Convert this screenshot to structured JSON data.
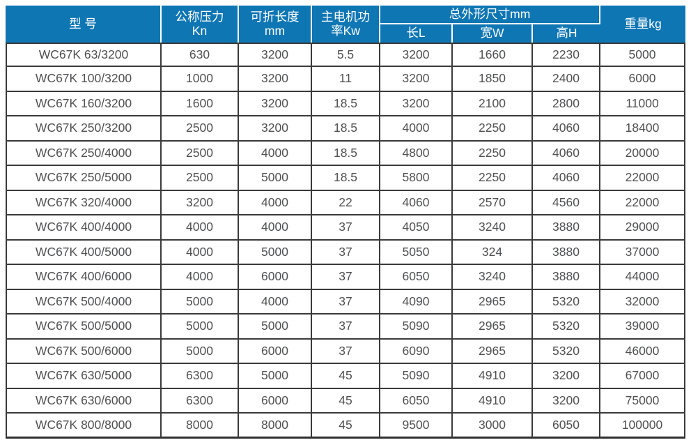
{
  "table": {
    "headers": {
      "model": "型 号",
      "pressure_line1": "公称压力",
      "pressure_line2": "Kn",
      "fold_length_line1": "可折长度",
      "fold_length_line2": "mm",
      "motor_power_line1": "主电机功",
      "motor_power_line2": "率Kw",
      "dimensions_group": "总外形尺寸mm",
      "dim_length": "长L",
      "dim_width": "宽W",
      "dim_height": "高H",
      "weight": "重量kg"
    },
    "rows": [
      {
        "model": "WC67K 63/3200",
        "pressure": "630",
        "fold_length": "3200",
        "motor_power": "5.5",
        "length": "3200",
        "width": "1660",
        "height": "2230",
        "weight": "5000"
      },
      {
        "model": "WC67K 100/3200",
        "pressure": "1000",
        "fold_length": "3200",
        "motor_power": "11",
        "length": "3200",
        "width": "1850",
        "height": "2400",
        "weight": "6000"
      },
      {
        "model": "WC67K 160/3200",
        "pressure": "1600",
        "fold_length": "3200",
        "motor_power": "18.5",
        "length": "3200",
        "width": "2100",
        "height": "2800",
        "weight": "11000"
      },
      {
        "model": "WC67K 250/3200",
        "pressure": "2500",
        "fold_length": "3200",
        "motor_power": "18.5",
        "length": "4000",
        "width": "2250",
        "height": "4060",
        "weight": "18400"
      },
      {
        "model": "WC67K 250/4000",
        "pressure": "2500",
        "fold_length": "4000",
        "motor_power": "18.5",
        "length": "4800",
        "width": "2250",
        "height": "4060",
        "weight": "20000"
      },
      {
        "model": "WC67K 250/5000",
        "pressure": "2500",
        "fold_length": "5000",
        "motor_power": "18.5",
        "length": "5800",
        "width": "2250",
        "height": "4060",
        "weight": "22000"
      },
      {
        "model": "WC67K 320/4000",
        "pressure": "3200",
        "fold_length": "4000",
        "motor_power": "22",
        "length": "4060",
        "width": "2570",
        "height": "4560",
        "weight": "22000"
      },
      {
        "model": "WC67K 400/4000",
        "pressure": "4000",
        "fold_length": "4000",
        "motor_power": "37",
        "length": "4050",
        "width": "3240",
        "height": "3880",
        "weight": "29000"
      },
      {
        "model": "WC67K 400/5000",
        "pressure": "4000",
        "fold_length": "5000",
        "motor_power": "37",
        "length": "5050",
        "width": "324",
        "height": "3880",
        "weight": "37000"
      },
      {
        "model": "WC67K 400/6000",
        "pressure": "4000",
        "fold_length": "6000",
        "motor_power": "37",
        "length": "6050",
        "width": "3240",
        "height": "3880",
        "weight": "44000"
      },
      {
        "model": "WC67K 500/4000",
        "pressure": "5000",
        "fold_length": "4000",
        "motor_power": "37",
        "length": "4090",
        "width": "2965",
        "height": "5320",
        "weight": "32000"
      },
      {
        "model": "WC67K 500/5000",
        "pressure": "5000",
        "fold_length": "5000",
        "motor_power": "37",
        "length": "5090",
        "width": "2965",
        "height": "5320",
        "weight": "39000"
      },
      {
        "model": "WC67K 500/6000",
        "pressure": "5000",
        "fold_length": "6000",
        "motor_power": "37",
        "length": "6090",
        "width": "2965",
        "height": "5320",
        "weight": "46000"
      },
      {
        "model": "WC67K 630/5000",
        "pressure": "6300",
        "fold_length": "5000",
        "motor_power": "45",
        "length": "5090",
        "width": "4910",
        "height": "3200",
        "weight": "67000"
      },
      {
        "model": "WC67K 630/6000",
        "pressure": "6300",
        "fold_length": "6000",
        "motor_power": "45",
        "length": "6050",
        "width": "4910",
        "height": "3200",
        "weight": "75000"
      },
      {
        "model": "WC67K 800/8000",
        "pressure": "8000",
        "fold_length": "8000",
        "motor_power": "45",
        "length": "9500",
        "width": "3000",
        "height": "6050",
        "weight": "100000"
      }
    ]
  },
  "colors": {
    "header_bg": "#0f76b4",
    "header_text": "#ffffff",
    "cell_text": "#4f5052",
    "grid_line": "#3a3a3a"
  }
}
